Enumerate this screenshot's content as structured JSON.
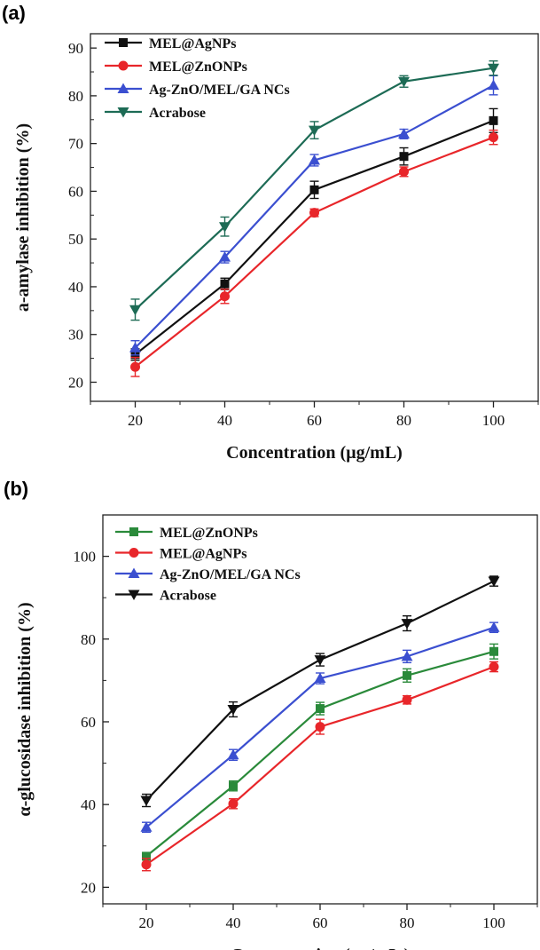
{
  "chart_data": [
    {
      "panel": "(a)",
      "type": "line",
      "xlabel": "Concentration (µg/mL)",
      "ylabel": "a-amylase inhibition (%)",
      "x": [
        20,
        40,
        60,
        80,
        100
      ],
      "xticks": [
        20,
        40,
        60,
        80,
        100
      ],
      "xlim": [
        10,
        110
      ],
      "ylim": [
        16,
        93
      ],
      "yticks": [
        20,
        30,
        40,
        50,
        60,
        70,
        80,
        90
      ],
      "legend_position": "top-left",
      "grid": false,
      "series": [
        {
          "name": "MEL@AgNPs",
          "color": "#111111",
          "marker": "square",
          "values": [
            25.8,
            40.6,
            60.3,
            67.3,
            74.8
          ],
          "errors": [
            1.2,
            1.2,
            1.8,
            1.8,
            2.5
          ]
        },
        {
          "name": "MEL@ZnONPs",
          "color": "#e8262a",
          "marker": "circle",
          "values": [
            23.2,
            38.0,
            55.5,
            64.1,
            71.3
          ],
          "errors": [
            2.0,
            1.5,
            0.8,
            1.0,
            1.5
          ]
        },
        {
          "name": "Ag-ZnO/MEL/GA NCs",
          "color": "#3b4fd0",
          "marker": "triangle-up",
          "values": [
            27.2,
            46.2,
            66.5,
            72.0,
            82.2
          ],
          "errors": [
            1.5,
            1.2,
            1.2,
            1.0,
            2.0
          ]
        },
        {
          "name": "Acrabose",
          "color": "#1d6b55",
          "marker": "triangle-down",
          "values": [
            35.2,
            52.6,
            72.8,
            83.0,
            85.8
          ],
          "errors": [
            2.2,
            2.0,
            1.8,
            1.2,
            1.5
          ]
        }
      ]
    },
    {
      "panel": "(b)",
      "type": "line",
      "xlabel": "Concentration (µg/mL )",
      "ylabel": "α-glucosidase inhibition (%)",
      "x": [
        20,
        40,
        60,
        80,
        100
      ],
      "xticks": [
        20,
        40,
        60,
        80,
        100
      ],
      "xlim": [
        10,
        110
      ],
      "ylim": [
        16,
        110
      ],
      "yticks": [
        20,
        40,
        60,
        80,
        100
      ],
      "legend_position": "top-left",
      "grid": false,
      "series": [
        {
          "name": "MEL@ZnONPs",
          "color": "#2a8a3a",
          "marker": "square",
          "values": [
            27.5,
            44.5,
            63.2,
            71.2,
            77.0
          ],
          "errors": [
            0.8,
            1.2,
            1.5,
            1.6,
            1.8
          ]
        },
        {
          "name": "MEL@AgNPs",
          "color": "#e8262a",
          "marker": "circle",
          "values": [
            25.5,
            40.2,
            58.8,
            65.3,
            73.3
          ],
          "errors": [
            1.5,
            1.2,
            1.8,
            1.0,
            1.2
          ]
        },
        {
          "name": "Ag-ZnO/MEL/GA NCs",
          "color": "#3b4fd0",
          "marker": "triangle-up",
          "values": [
            34.5,
            52.0,
            70.5,
            75.8,
            82.8
          ],
          "errors": [
            1.2,
            1.3,
            1.3,
            1.5,
            1.2
          ]
        },
        {
          "name": "Acrabose",
          "color": "#111111",
          "marker": "triangle-down",
          "values": [
            41.0,
            63.0,
            75.0,
            83.8,
            94.0
          ],
          "errors": [
            1.5,
            1.8,
            1.5,
            1.8,
            1.2
          ]
        }
      ]
    }
  ]
}
